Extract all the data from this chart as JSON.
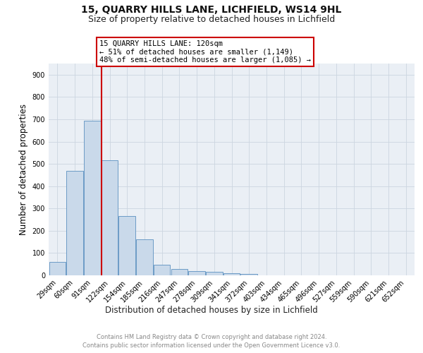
{
  "title": "15, QUARRY HILLS LANE, LICHFIELD, WS14 9HL",
  "subtitle": "Size of property relative to detached houses in Lichfield",
  "xlabel": "Distribution of detached houses by size in Lichfield",
  "ylabel": "Number of detached properties",
  "bar_labels": [
    "29sqm",
    "60sqm",
    "91sqm",
    "122sqm",
    "154sqm",
    "185sqm",
    "216sqm",
    "247sqm",
    "278sqm",
    "309sqm",
    "341sqm",
    "372sqm",
    "403sqm",
    "434sqm",
    "465sqm",
    "496sqm",
    "527sqm",
    "559sqm",
    "590sqm",
    "621sqm",
    "652sqm"
  ],
  "bar_values": [
    60,
    470,
    695,
    515,
    265,
    160,
    47,
    30,
    20,
    15,
    8,
    5,
    0,
    0,
    0,
    0,
    0,
    0,
    0,
    0,
    0
  ],
  "bar_color": "#c9d9ea",
  "bar_edge_color": "#5b90c0",
  "vline_x_index": 3,
  "vline_color": "#cc0000",
  "annotation_text": "15 QUARRY HILLS LANE: 120sqm\n← 51% of detached houses are smaller (1,149)\n48% of semi-detached houses are larger (1,085) →",
  "annotation_box_color": "#ffffff",
  "annotation_box_edge_color": "#cc0000",
  "ylim": [
    0,
    950
  ],
  "yticks": [
    0,
    100,
    200,
    300,
    400,
    500,
    600,
    700,
    800,
    900
  ],
  "grid_color": "#ccd5e0",
  "background_color": "#eaeff5",
  "footer_line1": "Contains HM Land Registry data © Crown copyright and database right 2024.",
  "footer_line2": "Contains public sector information licensed under the Open Government Licence v3.0.",
  "title_fontsize": 10,
  "subtitle_fontsize": 9,
  "tick_fontsize": 7,
  "ylabel_fontsize": 8.5,
  "xlabel_fontsize": 8.5,
  "annotation_fontsize": 7.5,
  "footer_fontsize": 6
}
